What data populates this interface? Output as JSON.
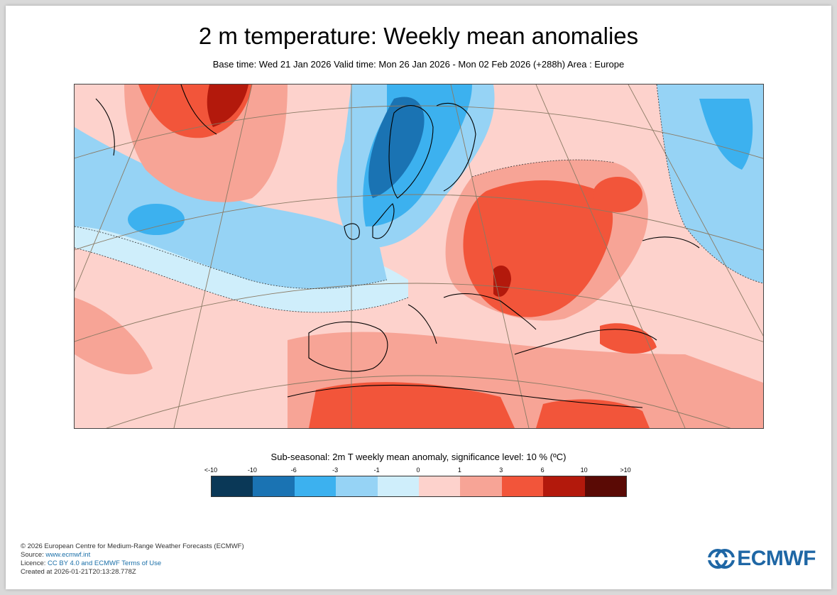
{
  "title": "2 m temperature: Weekly mean anomalies",
  "subtitle": "Base time: Wed 21 Jan 2026 Valid time: Mon 26 Jan 2026 - Mon 02 Feb 2026 (+288h) Area : Europe",
  "legend": {
    "title": "Sub-seasonal: 2m T weekly mean anomaly, significance level: 10 % (ºC)",
    "ticks": [
      "<-10",
      "-10",
      "-6",
      "-3",
      "-1",
      "0",
      "1",
      "3",
      "6",
      "10",
      ">10"
    ],
    "colors": [
      "#0a3857",
      "#1a73b3",
      "#3cb1ef",
      "#96d3f5",
      "#cfeefb",
      "#fdd2cc",
      "#f7a496",
      "#f2553a",
      "#b3190c",
      "#5a0a05"
    ]
  },
  "map": {
    "region_colors": {
      "strong_cold": "#1a73b3",
      "cold": "#3cb1ef",
      "cool": "#96d3f5",
      "slight_cool": "#cfeefb",
      "slight_warm": "#fdd2cc",
      "warm": "#f7a496",
      "hot": "#f2553a",
      "very_hot": "#b3190c"
    }
  },
  "footer": {
    "copyright": "© 2026 European Centre for Medium-Range Weather Forecasts (ECMWF)",
    "source_label": "Source: ",
    "source_link": "www.ecmwf.int",
    "licence_label": "Licence: ",
    "licence_link": "CC BY 4.0 and ECMWF Terms of Use",
    "created": "Created at 2026-01-21T20:13:28.778Z"
  },
  "logo_text": "ECMWF"
}
